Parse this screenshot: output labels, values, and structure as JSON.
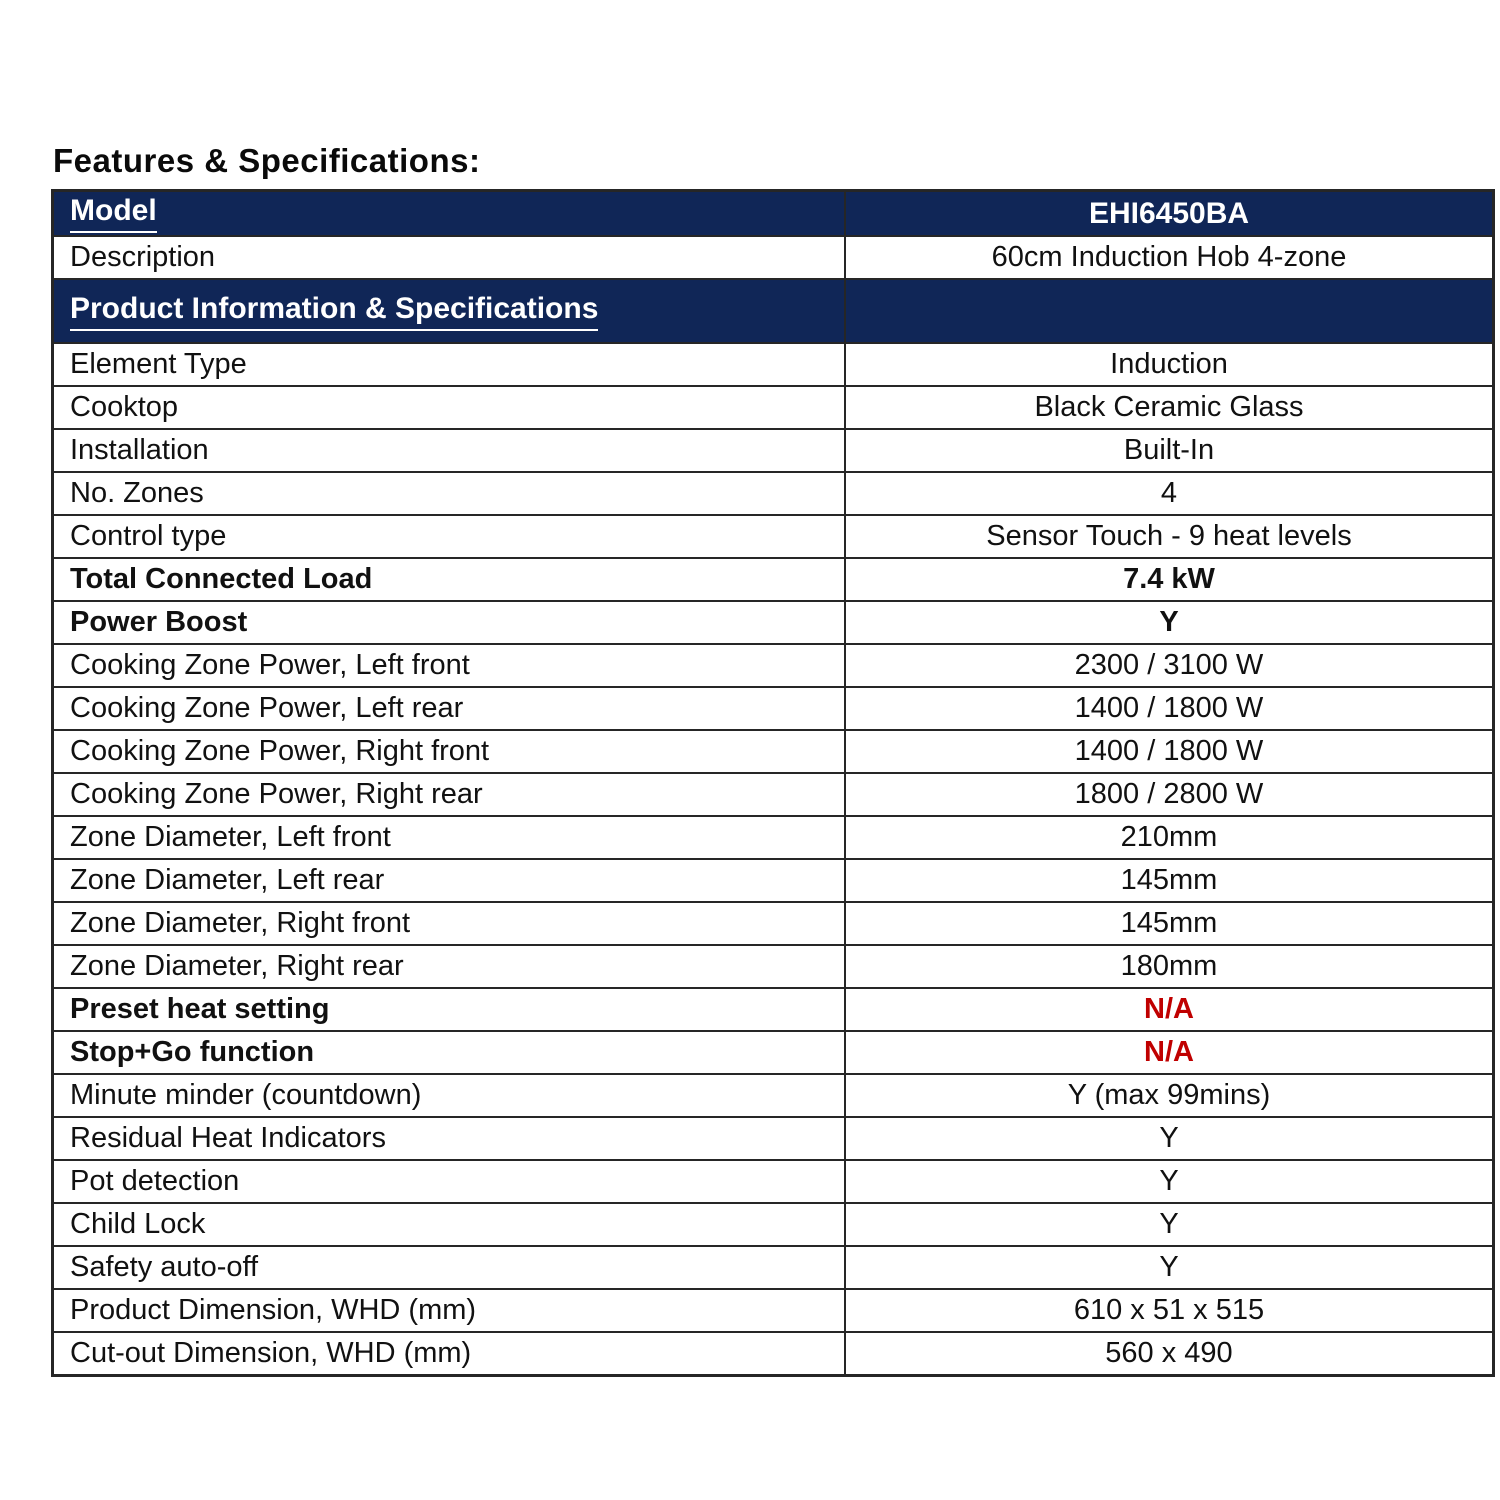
{
  "title": "Features & Specifications:",
  "colors": {
    "section_bg": "#102657",
    "section_text": "#ffffff",
    "body_text": "#111111",
    "grid_line": "#262626",
    "na_red": "#c00000"
  },
  "table": {
    "rows": [
      {
        "label": "Model",
        "value": "EHI6450BA",
        "style": "section"
      },
      {
        "label": "Description",
        "value": "60cm Induction Hob 4-zone",
        "style": "normal"
      },
      {
        "label": "Product Information & Specifications",
        "value": "",
        "style": "section",
        "tall": true
      },
      {
        "label": "Element Type",
        "value": "Induction",
        "style": "normal"
      },
      {
        "label": "Cooktop",
        "value": "Black Ceramic Glass",
        "style": "normal"
      },
      {
        "label": "Installation",
        "value": "Built-In",
        "style": "normal"
      },
      {
        "label": "No. Zones",
        "value": "4",
        "style": "normal"
      },
      {
        "label": "Control type",
        "value": "Sensor Touch - 9 heat levels",
        "style": "normal"
      },
      {
        "label": "Total Connected Load",
        "value": "7.4 kW",
        "style": "bold"
      },
      {
        "label": "Power Boost",
        "value": "Y",
        "style": "bold"
      },
      {
        "label": "Cooking Zone Power, Left front",
        "value": "2300 / 3100 W",
        "style": "normal"
      },
      {
        "label": "Cooking Zone Power, Left rear",
        "value": "1400 / 1800 W",
        "style": "normal"
      },
      {
        "label": "Cooking Zone Power, Right front",
        "value": "1400 / 1800 W",
        "style": "normal"
      },
      {
        "label": "Cooking Zone Power, Right rear",
        "value": "1800 / 2800 W",
        "style": "normal"
      },
      {
        "label": "Zone Diameter, Left front",
        "value": "210mm",
        "style": "normal"
      },
      {
        "label": "Zone Diameter, Left rear",
        "value": "145mm",
        "style": "normal"
      },
      {
        "label": "Zone Diameter, Right front",
        "value": "145mm",
        "style": "normal"
      },
      {
        "label": "Zone Diameter, Right rear",
        "value": "180mm",
        "style": "normal"
      },
      {
        "label": "Preset heat setting",
        "value": "N/A",
        "style": "bold",
        "value_red": true
      },
      {
        "label": "Stop+Go function",
        "value": "N/A",
        "style": "bold",
        "value_red": true
      },
      {
        "label": "Minute minder (countdown)",
        "value": "Y (max 99mins)",
        "style": "normal"
      },
      {
        "label": "Residual Heat Indicators",
        "value": "Y",
        "style": "normal"
      },
      {
        "label": "Pot detection",
        "value": "Y",
        "style": "normal"
      },
      {
        "label": "Child Lock",
        "value": "Y",
        "style": "normal"
      },
      {
        "label": "Safety auto-off",
        "value": "Y",
        "style": "normal"
      },
      {
        "label": "Product Dimension, WHD (mm)",
        "value": "610 x 51 x 515",
        "style": "normal"
      },
      {
        "label": "Cut-out Dimension, WHD (mm)",
        "value": "560 x 490",
        "style": "normal"
      }
    ]
  }
}
